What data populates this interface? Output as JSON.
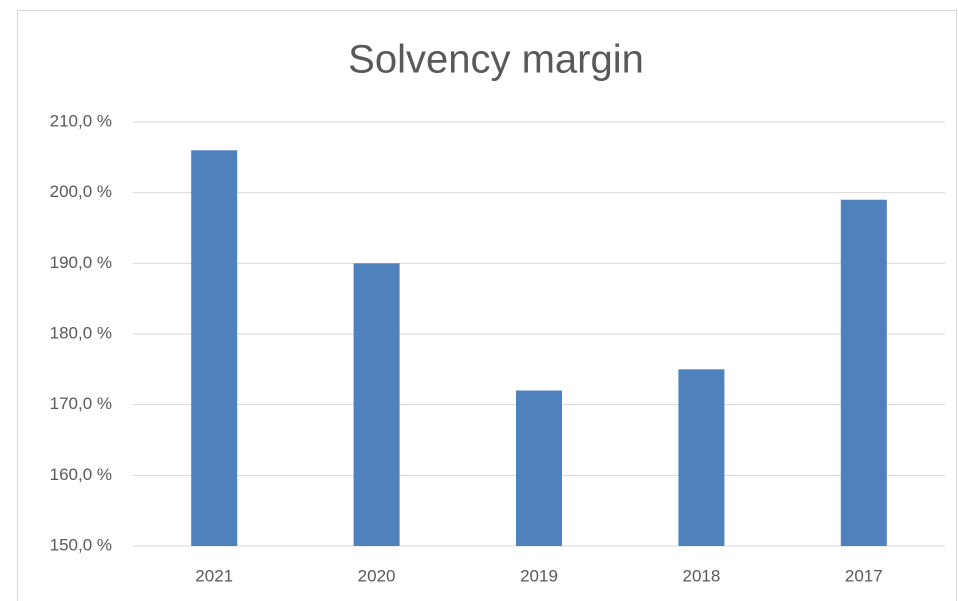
{
  "chart_data": {
    "type": "bar",
    "title": "Solvency margin",
    "categories": [
      "2021",
      "2020",
      "2019",
      "2018",
      "2017"
    ],
    "values": [
      206,
      190,
      172,
      175,
      199
    ],
    "color": "#4f81bd",
    "ylim": [
      150,
      210
    ],
    "yticks": [
      {
        "value": 150,
        "label": "150,0 %"
      },
      {
        "value": 160,
        "label": "160,0 %"
      },
      {
        "value": 170,
        "label": "170,0 %"
      },
      {
        "value": 180,
        "label": "180,0 %"
      },
      {
        "value": 190,
        "label": "190,0 %"
      },
      {
        "value": 200,
        "label": "200,0 %"
      },
      {
        "value": 210,
        "label": "210,0 %"
      }
    ],
    "grid": true
  }
}
